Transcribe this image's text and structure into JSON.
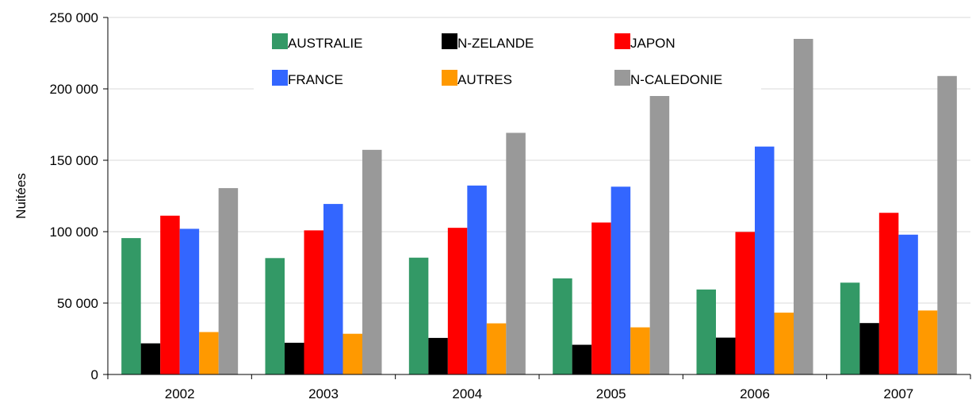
{
  "chart_data": {
    "type": "bar",
    "title": "",
    "xlabel": "",
    "ylabel": "Nuitées",
    "ylim": [
      0,
      250000
    ],
    "yticks": [
      0,
      50000,
      100000,
      150000,
      200000,
      250000
    ],
    "ytick_labels": [
      "0",
      "50 000",
      "100 000",
      "150 000",
      "200 000",
      "250 000"
    ],
    "grid": true,
    "legend_position": "top",
    "categories": [
      "2002",
      "2003",
      "2004",
      "2005",
      "2006",
      "2007"
    ],
    "series": [
      {
        "name": "AUSTRALIE",
        "color": "#339966",
        "values": [
          95500,
          81500,
          81800,
          67300,
          59500,
          64300
        ]
      },
      {
        "name": "N-ZELANDE",
        "color": "#000000",
        "values": [
          21800,
          22200,
          25600,
          20800,
          25800,
          36000
        ]
      },
      {
        "name": "JAPON",
        "color": "#ff0000",
        "values": [
          111200,
          100900,
          102700,
          106400,
          99800,
          113200
        ]
      },
      {
        "name": "FRANCE",
        "color": "#3366ff",
        "values": [
          102000,
          119400,
          132300,
          131500,
          159600,
          97900
        ]
      },
      {
        "name": "AUTRES",
        "color": "#ff9900",
        "values": [
          29700,
          28500,
          35800,
          33000,
          43300,
          44800
        ]
      },
      {
        "name": "N-CALEDONIE",
        "color": "#999999",
        "values": [
          130500,
          157300,
          169200,
          195000,
          235000,
          209000
        ]
      }
    ]
  }
}
